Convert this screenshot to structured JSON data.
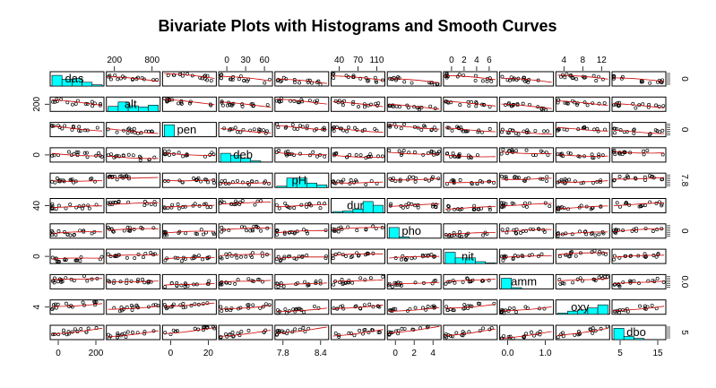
{
  "chart_data": {
    "type": "scatter",
    "subtype": "scatterplot-matrix",
    "title": "Bivariate Plots with Histograms and Smooth Curves",
    "variables": [
      "das",
      "alt",
      "pen",
      "deb",
      "pH",
      "dur",
      "pho",
      "nit",
      "amm",
      "oxy",
      "dbo"
    ],
    "histogram_color": "#00ffff",
    "smooth_color": "#cc0000",
    "point_color": "#000000",
    "axes": {
      "top": [
        {
          "col": 1,
          "ticks": [
            "200",
            "800"
          ]
        },
        {
          "col": 3,
          "ticks": [
            "0",
            "30",
            "60"
          ]
        },
        {
          "col": 5,
          "ticks": [
            "40",
            "70",
            "110"
          ]
        },
        {
          "col": 7,
          "ticks": [
            "0",
            "2",
            "4",
            "6"
          ]
        },
        {
          "col": 9,
          "ticks": [
            "4",
            "8",
            "12"
          ]
        }
      ],
      "bottom": [
        {
          "col": 0,
          "ticks": [
            "0",
            "200"
          ]
        },
        {
          "col": 2,
          "ticks": [
            "0",
            "20"
          ]
        },
        {
          "col": 4,
          "ticks": [
            "7.8",
            "8.4"
          ]
        },
        {
          "col": 6,
          "ticks": [
            "0",
            "2",
            "4"
          ]
        },
        {
          "col": 8,
          "ticks": [
            "0.0",
            "1.0"
          ]
        },
        {
          "col": 10,
          "ticks": [
            "5",
            "15"
          ]
        }
      ],
      "left": [
        {
          "row": 1,
          "ticks": [
            "200"
          ]
        },
        {
          "row": 3,
          "ticks": [
            "0"
          ]
        },
        {
          "row": 5,
          "ticks": [
            "40"
          ]
        },
        {
          "row": 7,
          "ticks": [
            "0"
          ]
        },
        {
          "row": 9,
          "ticks": [
            "4"
          ]
        }
      ],
      "right": [
        {
          "row": 0,
          "ticks": [
            "0"
          ]
        },
        {
          "row": 2,
          "ticks": [
            "0"
          ]
        },
        {
          "row": 4,
          "ticks": [
            "7.8"
          ]
        },
        {
          "row": 6,
          "ticks": [
            "0"
          ]
        },
        {
          "row": 8,
          "ticks": [
            "0.0"
          ]
        },
        {
          "row": 10,
          "ticks": [
            "5"
          ]
        }
      ]
    },
    "histograms": [
      [
        0.85,
        0.55,
        0.6,
        0.3,
        0.1
      ],
      [
        0.4,
        0.75,
        0.45,
        0.35,
        0.5
      ],
      [
        0.95,
        0.0,
        0.0,
        0.0,
        0.0
      ],
      [
        0.7,
        0.55,
        0.3,
        0.1,
        0.0
      ],
      [
        0.1,
        0.75,
        0.75,
        0.35,
        0.2
      ],
      [
        0.1,
        0.15,
        0.3,
        0.9,
        0.6
      ],
      [
        0.85,
        0.1,
        0.0,
        0.0,
        0.0
      ],
      [
        0.9,
        0.45,
        0.45,
        0.15,
        0.05
      ],
      [
        0.85,
        0.1,
        0.0,
        0.0,
        0.0
      ],
      [
        0.1,
        0.25,
        0.35,
        0.5,
        0.75
      ],
      [
        0.9,
        0.25,
        0.1,
        0.0,
        0.0
      ]
    ]
  }
}
